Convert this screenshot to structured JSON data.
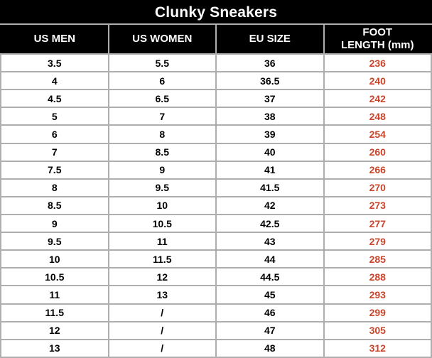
{
  "page_title": "Clunky Sneakers",
  "header": {
    "title": "Clunky Sneakers",
    "labels": [
      "US MEN",
      "US WOMEN",
      "EU SIZE",
      "FOOT\nLENGTH (mm)"
    ]
  },
  "colors": {
    "header_bg": "#000000",
    "header_text": "#ffffff",
    "grid": "#aeaeae",
    "body_text": "#000000",
    "foot_length_text": "#c9452b",
    "row_bg": "#ffffff"
  },
  "chart_data": {
    "type": "table",
    "title": "Clunky Sneakers",
    "columns": [
      "US MEN",
      "US WOMEN",
      "EU SIZE",
      "FOOT LENGTH (mm)"
    ],
    "rows": [
      [
        "3.5",
        "5.5",
        "36",
        "236"
      ],
      [
        "4",
        "6",
        "36.5",
        "240"
      ],
      [
        "4.5",
        "6.5",
        "37",
        "242"
      ],
      [
        "5",
        "7",
        "38",
        "248"
      ],
      [
        "6",
        "8",
        "39",
        "254"
      ],
      [
        "7",
        "8.5",
        "40",
        "260"
      ],
      [
        "7.5",
        "9",
        "41",
        "266"
      ],
      [
        "8",
        "9.5",
        "41.5",
        "270"
      ],
      [
        "8.5",
        "10",
        "42",
        "273"
      ],
      [
        "9",
        "10.5",
        "42.5",
        "277"
      ],
      [
        "9.5",
        "11",
        "43",
        "279"
      ],
      [
        "10",
        "11.5",
        "44",
        "285"
      ],
      [
        "10.5",
        "12",
        "44.5",
        "288"
      ],
      [
        "11",
        "13",
        "45",
        "293"
      ],
      [
        "11.5",
        "/",
        "46",
        "299"
      ],
      [
        "12",
        "/",
        "47",
        "305"
      ],
      [
        "13",
        "/",
        "48",
        "312"
      ]
    ]
  }
}
